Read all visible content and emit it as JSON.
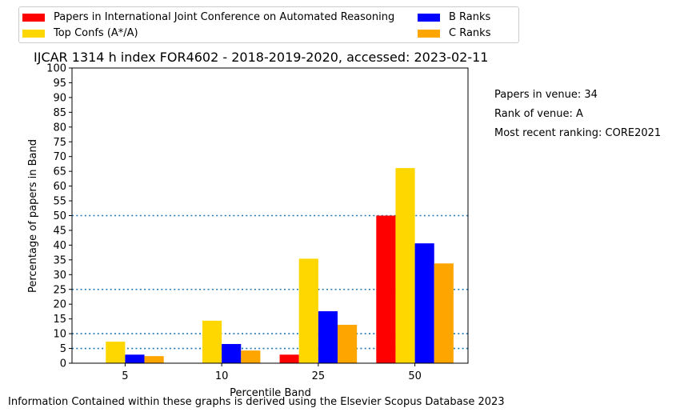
{
  "chart_data": {
    "type": "bar",
    "title": "IJCAR 1314 h index FOR4602 - 2018-2019-2020, accessed: 2023-02-11",
    "xlabel": "Percentile Band",
    "ylabel": "Percentage of papers in Band",
    "categories": [
      "5",
      "10",
      "25",
      "50"
    ],
    "ylim": [
      0,
      100
    ],
    "yticks": [
      "0",
      "5",
      "10",
      "15",
      "20",
      "25",
      "30",
      "35",
      "40",
      "45",
      "50",
      "55",
      "60",
      "65",
      "70",
      "75",
      "80",
      "85",
      "90",
      "95",
      "100"
    ],
    "reference_lines": [
      5,
      10,
      25,
      50
    ],
    "grid": false,
    "legend_position": "top",
    "series": [
      {
        "name": "Papers in International Joint Conference on Automated Reasoning",
        "color": "#ff0000",
        "values": [
          0,
          0,
          2.9,
          50.0
        ]
      },
      {
        "name": "Top Confs (A*/A)",
        "color": "#ffd700",
        "values": [
          7.3,
          14.4,
          35.4,
          66.1
        ]
      },
      {
        "name": "B Ranks",
        "color": "#0000ff",
        "values": [
          2.9,
          6.5,
          17.6,
          40.6
        ]
      },
      {
        "name": "C Ranks",
        "color": "#ffa500",
        "values": [
          2.4,
          4.3,
          13.0,
          33.8
        ]
      }
    ]
  },
  "side_notes": {
    "papers": "Papers in venue: 34",
    "rank": "Rank of venue: A",
    "ranking": "Most recent ranking: CORE2021"
  },
  "footer": "Information Contained within these graphs is derived using the Elsevier Scopus Database 2023"
}
